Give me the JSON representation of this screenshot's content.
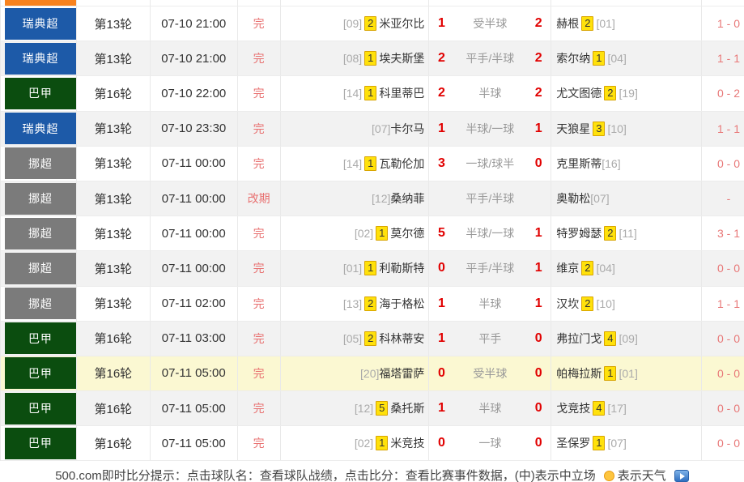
{
  "top_partial": {
    "league_color": "#f8821e"
  },
  "colors": {
    "league_sweden_blue": "#1d5aa8",
    "league_brazil_green": "#0b4d0f",
    "league_norway_gray": "#7b7b7b",
    "previous_row_orange": "#f8821e",
    "score_red": "#e10000",
    "status_red": "#e87070",
    "halftime_red": "#e87878",
    "highlight_row_yellow": "#fbf8d2",
    "zebra_row_gray": "#f2f2f2",
    "yellow_card_bg": "#ffe10b",
    "yellow_card_border": "#d8a400"
  },
  "rows": [
    {
      "league": "瑞典超",
      "league_color": "#1d5aa8",
      "round": "第13轮",
      "time": "07-10 21:00",
      "status": "完",
      "home": {
        "rank": "[09]",
        "cards": "2",
        "name": "米亚尔比"
      },
      "home_score": "1",
      "handicap": "受半球",
      "away_score": "2",
      "away": {
        "name": "赫根",
        "cards": "2",
        "rank": "[01]"
      },
      "half_score": "1 - 0",
      "highlight": false
    },
    {
      "league": "瑞典超",
      "league_color": "#1d5aa8",
      "round": "第13轮",
      "time": "07-10 21:00",
      "status": "完",
      "home": {
        "rank": "[08]",
        "cards": "1",
        "name": "埃夫斯堡"
      },
      "home_score": "2",
      "handicap": "平手/半球",
      "away_score": "2",
      "away": {
        "name": "索尔纳",
        "cards": "1",
        "rank": "[04]"
      },
      "half_score": "1 - 1",
      "highlight": false
    },
    {
      "league": "巴甲",
      "league_color": "#0b4d0f",
      "round": "第16轮",
      "time": "07-10 22:00",
      "status": "完",
      "home": {
        "rank": "[14]",
        "cards": "1",
        "name": "科里蒂巴"
      },
      "home_score": "2",
      "handicap": "半球",
      "away_score": "2",
      "away": {
        "name": "尤文图德",
        "cards": "2",
        "rank": "[19]"
      },
      "half_score": "0 - 2",
      "highlight": false
    },
    {
      "league": "瑞典超",
      "league_color": "#1d5aa8",
      "round": "第13轮",
      "time": "07-10 23:30",
      "status": "完",
      "home": {
        "rank": "[07]",
        "cards": "",
        "name": "卡尔马"
      },
      "home_score": "1",
      "handicap": "半球/一球",
      "away_score": "1",
      "away": {
        "name": "天狼星",
        "cards": "3",
        "rank": "[10]"
      },
      "half_score": "1 - 1",
      "highlight": false
    },
    {
      "league": "挪超",
      "league_color": "#7b7b7b",
      "round": "第13轮",
      "time": "07-11 00:00",
      "status": "完",
      "home": {
        "rank": "[14]",
        "cards": "1",
        "name": "瓦勒伦加"
      },
      "home_score": "3",
      "handicap": "一球/球半",
      "away_score": "0",
      "away": {
        "name": "克里斯蒂",
        "cards": "",
        "rank": "[16]"
      },
      "half_score": "0 - 0",
      "highlight": false
    },
    {
      "league": "挪超",
      "league_color": "#7b7b7b",
      "round": "第13轮",
      "time": "07-11 00:00",
      "status": "改期",
      "home": {
        "rank": "[12]",
        "cards": "",
        "name": "桑纳菲"
      },
      "home_score": "",
      "handicap": "平手/半球",
      "away_score": "",
      "away": {
        "name": "奥勒松",
        "cards": "",
        "rank": "[07]"
      },
      "half_score": "-",
      "highlight": false
    },
    {
      "league": "挪超",
      "league_color": "#7b7b7b",
      "round": "第13轮",
      "time": "07-11 00:00",
      "status": "完",
      "home": {
        "rank": "[02]",
        "cards": "1",
        "name": "莫尔德"
      },
      "home_score": "5",
      "handicap": "半球/一球",
      "away_score": "1",
      "away": {
        "name": "特罗姆瑟",
        "cards": "2",
        "rank": "[11]"
      },
      "half_score": "3 - 1",
      "highlight": false
    },
    {
      "league": "挪超",
      "league_color": "#7b7b7b",
      "round": "第13轮",
      "time": "07-11 00:00",
      "status": "完",
      "home": {
        "rank": "[01]",
        "cards": "1",
        "name": "利勒斯特"
      },
      "home_score": "0",
      "handicap": "平手/半球",
      "away_score": "1",
      "away": {
        "name": "维京",
        "cards": "2",
        "rank": "[04]"
      },
      "half_score": "0 - 0",
      "highlight": false
    },
    {
      "league": "挪超",
      "league_color": "#7b7b7b",
      "round": "第13轮",
      "time": "07-11 02:00",
      "status": "完",
      "home": {
        "rank": "[13]",
        "cards": "2",
        "name": "海于格松"
      },
      "home_score": "1",
      "handicap": "半球",
      "away_score": "1",
      "away": {
        "name": "汉坎",
        "cards": "2",
        "rank": "[10]"
      },
      "half_score": "1 - 1",
      "highlight": false
    },
    {
      "league": "巴甲",
      "league_color": "#0b4d0f",
      "round": "第16轮",
      "time": "07-11 03:00",
      "status": "完",
      "home": {
        "rank": "[05]",
        "cards": "2",
        "name": "科林蒂安"
      },
      "home_score": "1",
      "handicap": "平手",
      "away_score": "0",
      "away": {
        "name": "弗拉门戈",
        "cards": "4",
        "rank": "[09]"
      },
      "half_score": "0 - 0",
      "highlight": false
    },
    {
      "league": "巴甲",
      "league_color": "#0b4d0f",
      "round": "第16轮",
      "time": "07-11 05:00",
      "status": "完",
      "home": {
        "rank": "[20]",
        "cards": "",
        "name": "福塔雷萨"
      },
      "home_score": "0",
      "handicap": "受半球",
      "away_score": "0",
      "away": {
        "name": "帕梅拉斯",
        "cards": "1",
        "rank": "[01]"
      },
      "half_score": "0 - 0",
      "highlight": true
    },
    {
      "league": "巴甲",
      "league_color": "#0b4d0f",
      "round": "第16轮",
      "time": "07-11 05:00",
      "status": "完",
      "home": {
        "rank": "[12]",
        "cards": "5",
        "name": "桑托斯"
      },
      "home_score": "1",
      "handicap": "半球",
      "away_score": "0",
      "away": {
        "name": "戈竞技",
        "cards": "4",
        "rank": "[17]"
      },
      "half_score": "0 - 0",
      "highlight": false
    },
    {
      "league": "巴甲",
      "league_color": "#0b4d0f",
      "round": "第16轮",
      "time": "07-11 05:00",
      "status": "完",
      "home": {
        "rank": "[02]",
        "cards": "1",
        "name": "米竞技"
      },
      "home_score": "0",
      "handicap": "一球",
      "away_score": "0",
      "away": {
        "name": "圣保罗",
        "cards": "1",
        "rank": "[07]"
      },
      "half_score": "0 - 0",
      "highlight": false
    }
  ],
  "footer": {
    "tip_text": "500.com即时比分提示：点击球队名：查看球队战绩，点击比分：查看比赛事件数据，(中)表示中立场",
    "weather_label": "表示天气"
  }
}
